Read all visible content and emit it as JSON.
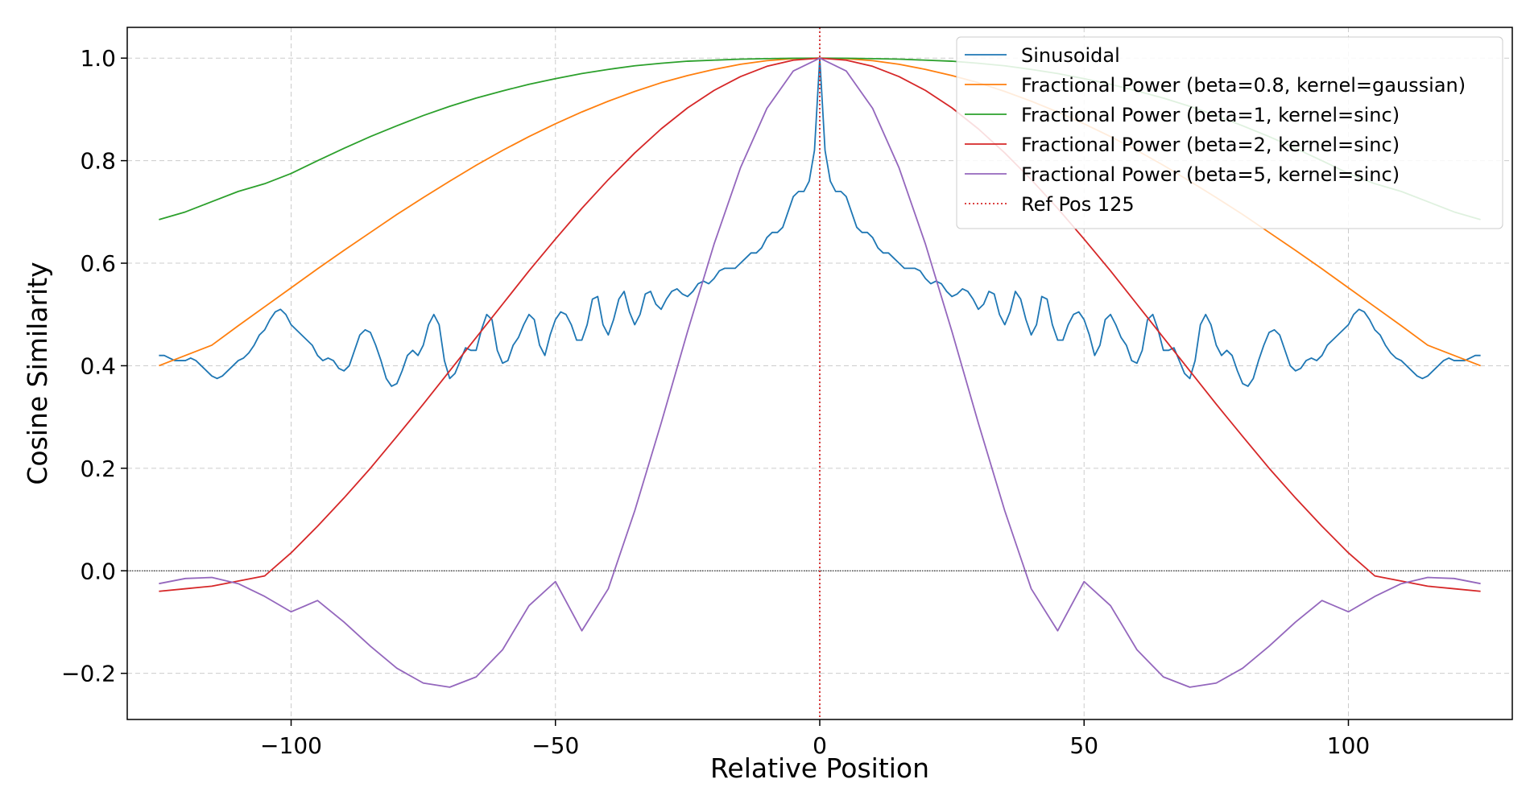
{
  "chart_data": {
    "type": "line",
    "title": "",
    "xlabel": "Relative Position",
    "ylabel": "Cosine Similarity",
    "xlim": [
      -131,
      131
    ],
    "ylim": [
      -0.29,
      1.06
    ],
    "x_range": [
      -125,
      125
    ],
    "x_step": 1,
    "xticks": [
      -100,
      -50,
      0,
      50,
      100
    ],
    "xtick_labels": [
      "−100",
      "−50",
      "0",
      "50",
      "100"
    ],
    "yticks": [
      -0.2,
      0.0,
      0.2,
      0.4,
      0.6,
      0.8,
      1.0
    ],
    "ytick_labels": [
      "−0.2",
      "0.0",
      "0.2",
      "0.4",
      "0.6",
      "0.8",
      "1.0"
    ],
    "grid": true,
    "legend_position": "top-right",
    "reference_line": {
      "x": 0,
      "label": "Ref Pos 125",
      "color": "#d62728",
      "style": "dotted"
    },
    "zero_line": {
      "y": 0,
      "color": "#000000",
      "style": "dotted"
    },
    "series": [
      {
        "name": "Sinusoidal",
        "color": "#1f77b4",
        "x": [
          0,
          1,
          2,
          3,
          4,
          5,
          6,
          7,
          8,
          9,
          10,
          11,
          12,
          13,
          14,
          15,
          16,
          17,
          18,
          19,
          20,
          21,
          22,
          23,
          24,
          25,
          26,
          27,
          28,
          29,
          30,
          31,
          32,
          33,
          34,
          35,
          36,
          37,
          38,
          39,
          40,
          41,
          42,
          43,
          44,
          45,
          46,
          47,
          48,
          49,
          50,
          51,
          52,
          53,
          54,
          55,
          56,
          57,
          58,
          59,
          60,
          61,
          62,
          63,
          64,
          65,
          66,
          67,
          68,
          69,
          70,
          71,
          72,
          73,
          74,
          75,
          76,
          77,
          78,
          79,
          80,
          81,
          82,
          83,
          84,
          85,
          86,
          87,
          88,
          89,
          90,
          91,
          92,
          93,
          94,
          95,
          96,
          97,
          98,
          99,
          100,
          101,
          102,
          103,
          104,
          105,
          106,
          107,
          108,
          109,
          110,
          111,
          112,
          113,
          114,
          115,
          116,
          117,
          118,
          119,
          120,
          121,
          122,
          123,
          124,
          125
        ],
        "y": [
          1.0,
          0.82,
          0.76,
          0.74,
          0.74,
          0.73,
          0.7,
          0.67,
          0.66,
          0.66,
          0.65,
          0.63,
          0.62,
          0.62,
          0.61,
          0.6,
          0.59,
          0.59,
          0.59,
          0.585,
          0.57,
          0.56,
          0.565,
          0.56,
          0.545,
          0.535,
          0.54,
          0.55,
          0.545,
          0.53,
          0.51,
          0.52,
          0.545,
          0.54,
          0.5,
          0.48,
          0.505,
          0.545,
          0.53,
          0.49,
          0.46,
          0.48,
          0.535,
          0.53,
          0.48,
          0.45,
          0.45,
          0.48,
          0.5,
          0.505,
          0.49,
          0.46,
          0.42,
          0.44,
          0.49,
          0.5,
          0.48,
          0.455,
          0.44,
          0.41,
          0.405,
          0.43,
          0.49,
          0.5,
          0.47,
          0.43,
          0.43,
          0.435,
          0.41,
          0.385,
          0.375,
          0.41,
          0.48,
          0.5,
          0.48,
          0.44,
          0.42,
          0.43,
          0.42,
          0.39,
          0.365,
          0.36,
          0.375,
          0.41,
          0.44,
          0.465,
          0.47,
          0.46,
          0.43,
          0.4,
          0.39,
          0.395,
          0.41,
          0.415,
          0.41,
          0.42,
          0.44,
          0.45,
          0.46,
          0.47,
          0.48,
          0.5,
          0.51,
          0.505,
          0.49,
          0.47,
          0.46,
          0.44,
          0.425,
          0.415,
          0.41,
          0.4,
          0.39,
          0.38,
          0.375,
          0.38,
          0.39,
          0.4,
          0.41,
          0.415,
          0.41,
          0.41,
          0.41,
          0.415,
          0.42,
          0.42
        ]
      },
      {
        "name": "Fractional Power (beta=0.8, kernel=gaussian)",
        "color": "#ff7f0e",
        "x": [
          0,
          5,
          10,
          15,
          20,
          25,
          30,
          35,
          40,
          45,
          50,
          55,
          60,
          65,
          70,
          75,
          80,
          85,
          90,
          95,
          100,
          105,
          110,
          115,
          120,
          125
        ],
        "y": [
          1.0,
          0.999,
          0.995,
          0.988,
          0.978,
          0.966,
          0.952,
          0.935,
          0.916,
          0.895,
          0.872,
          0.847,
          0.82,
          0.791,
          0.76,
          0.728,
          0.695,
          0.66,
          0.625,
          0.589,
          0.552,
          0.515,
          0.478,
          0.44,
          0.42,
          0.4
        ]
      },
      {
        "name": "Fractional Power (beta=1, kernel=sinc)",
        "color": "#2ca02c",
        "x": [
          0,
          5,
          10,
          15,
          20,
          25,
          30,
          35,
          40,
          45,
          50,
          55,
          60,
          65,
          70,
          75,
          80,
          85,
          90,
          95,
          100,
          105,
          110,
          115,
          120,
          125
        ],
        "y": [
          1.0,
          0.9997,
          0.999,
          0.998,
          0.996,
          0.994,
          0.99,
          0.985,
          0.978,
          0.97,
          0.96,
          0.949,
          0.936,
          0.922,
          0.906,
          0.888,
          0.868,
          0.847,
          0.824,
          0.8,
          0.775,
          0.755,
          0.74,
          0.72,
          0.7,
          0.685
        ]
      },
      {
        "name": "Fractional Power (beta=2, kernel=sinc)",
        "color": "#d62728",
        "x": [
          0,
          5,
          10,
          15,
          20,
          25,
          30,
          35,
          40,
          45,
          50,
          55,
          60,
          65,
          70,
          75,
          80,
          85,
          90,
          95,
          100,
          105,
          110,
          115,
          120,
          125
        ],
        "y": [
          1.0,
          0.996,
          0.984,
          0.964,
          0.937,
          0.903,
          0.862,
          0.815,
          0.763,
          0.707,
          0.647,
          0.585,
          0.52,
          0.455,
          0.39,
          0.325,
          0.262,
          0.2,
          0.142,
          0.087,
          0.035,
          -0.01,
          -0.02,
          -0.03,
          -0.035,
          -0.04
        ]
      },
      {
        "name": "Fractional Power (beta=5, kernel=sinc)",
        "color": "#9467bd",
        "x": [
          0,
          5,
          10,
          15,
          20,
          25,
          30,
          35,
          40,
          45,
          50,
          55,
          60,
          65,
          70,
          75,
          80,
          85,
          90,
          95,
          100,
          105,
          110,
          115,
          120,
          125
        ],
        "y": [
          1.0,
          0.975,
          0.902,
          0.786,
          0.637,
          0.467,
          0.288,
          0.117,
          -0.035,
          -0.117,
          -0.021,
          -0.068,
          -0.154,
          -0.207,
          -0.227,
          -0.219,
          -0.19,
          -0.147,
          -0.1,
          -0.058,
          -0.08,
          -0.05,
          -0.025,
          -0.013,
          -0.015,
          -0.025
        ]
      }
    ]
  }
}
